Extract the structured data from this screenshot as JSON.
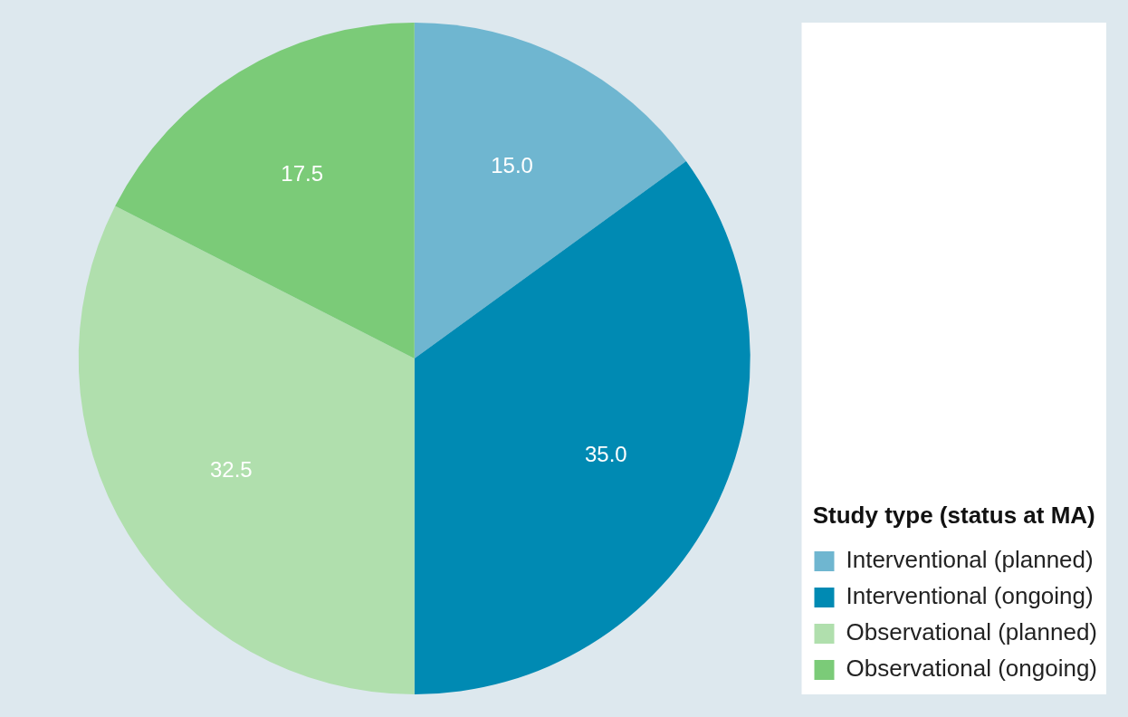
{
  "chart_data": {
    "type": "pie",
    "legend_title": "Study type (status at MA)",
    "categories": [
      "Interventional (planned)",
      "Interventional (ongoing)",
      "Observational (planned)",
      "Observational (ongoing)"
    ],
    "values": [
      15.0,
      35.0,
      32.5,
      17.5
    ],
    "value_labels": [
      "15.0",
      "35.0",
      "32.5",
      "17.5"
    ],
    "colors": [
      "#6fb6d0",
      "#008ab3",
      "#b0dfad",
      "#7bcb78"
    ],
    "data_labels": true,
    "legend": "lower right"
  }
}
